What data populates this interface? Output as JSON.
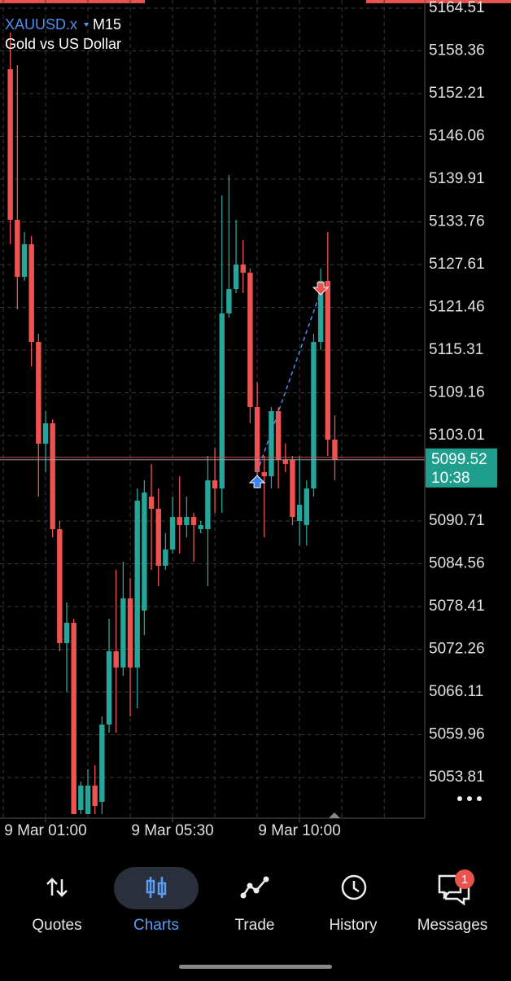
{
  "chart_data": {
    "type": "candlestick",
    "symbol": "XAUUSD.x",
    "timeframe": "M15",
    "subtitle": "Gold vs US Dollar",
    "up_color": "#26a69a",
    "down_color": "#ef5350",
    "grid": true,
    "ylim": [
      5047.95,
      5165.68
    ],
    "yticks": [
      5164.51,
      5158.36,
      5152.21,
      5146.06,
      5139.91,
      5133.76,
      5127.61,
      5121.46,
      5115.31,
      5109.16,
      5103.01,
      5090.71,
      5084.56,
      5078.41,
      5072.26,
      5066.11,
      5059.96,
      5053.81
    ],
    "xticks": [
      {
        "value": 5,
        "label": "9 Mar 01:00"
      },
      {
        "value": 23,
        "label": "9 Mar 05:30"
      },
      {
        "value": 41,
        "label": "9 Mar 10:00"
      }
    ],
    "open": [
      5155.72,
      5134.05,
      5125.85,
      5130.54,
      5116.48,
      5101.84,
      5104.77,
      5089.54,
      5073.14,
      5076.07,
      5049.12,
      5048.54,
      5052.64,
      5050.3,
      5061.42,
      5071.97,
      5069.63,
      5079.58,
      5069.63,
      5077.82,
      5094.22,
      5092.47,
      5084.27,
      5086.61,
      5091.29,
      5090.12,
      5091.29,
      5089.54,
      5089.54,
      5096.57,
      5095.39,
      5120.58,
      5124.09,
      5127.61,
      5126.44,
      5107.11,
      5097.74,
      5097.15,
      5106.52,
      5099.5,
      5099.5,
      5090.71,
      5090.12,
      5095.39,
      5116.48,
      5125.27,
      5102.42
    ],
    "high": [
      5160.99,
      5156.31,
      5132.29,
      5131.71,
      5117.65,
      5106.52,
      5105.35,
      5090.71,
      5079.0,
      5076.65,
      5053.22,
      5054.98,
      5055.57,
      5062.6,
      5076.65,
      5083.68,
      5084.85,
      5082.51,
      5095.39,
      5096.57,
      5098.91,
      5095.39,
      5088.95,
      5094.22,
      5097.15,
      5094.22,
      5091.88,
      5090.71,
      5100.08,
      5101.25,
      5137.57,
      5140.49,
      5134.05,
      5131.12,
      5127.02,
      5110.62,
      5100.08,
      5107.11,
      5107.11,
      5101.84,
      5100.08,
      5100.08,
      5096.57,
      5117.65,
      5127.02,
      5132.29,
      5105.94
    ],
    "low": [
      5130.54,
      5121.17,
      5125.27,
      5112.97,
      5094.22,
      5097.74,
      5088.37,
      5071.97,
      5066.11,
      5048.54,
      5048.54,
      5048.54,
      5048.54,
      5048.54,
      5060.25,
      5060.25,
      5068.45,
      5062.6,
      5063.77,
      5074.31,
      5083.68,
      5081.34,
      5083.68,
      5086.02,
      5086.02,
      5088.37,
      5084.85,
      5088.95,
      5081.34,
      5091.88,
      5091.88,
      5120.0,
      5123.51,
      5123.51,
      5104.77,
      5095.39,
      5088.37,
      5095.39,
      5095.39,
      5097.74,
      5090.12,
      5087.19,
      5087.19,
      5094.22,
      5115.31,
      5100.08,
      5096.57
    ],
    "close": [
      5134.05,
      5125.85,
      5130.54,
      5116.48,
      5101.84,
      5104.77,
      5089.54,
      5073.14,
      5076.07,
      5048.54,
      5052.64,
      5052.64,
      5049.71,
      5061.42,
      5071.97,
      5069.63,
      5079.58,
      5069.63,
      5093.64,
      5094.81,
      5092.47,
      5084.27,
      5086.61,
      5091.29,
      5090.12,
      5091.29,
      5090.12,
      5090.12,
      5096.57,
      5095.39,
      5120.58,
      5124.09,
      5127.61,
      5126.44,
      5107.11,
      5097.74,
      5097.15,
      5106.52,
      5099.5,
      5098.91,
      5091.29,
      5093.05,
      5095.39,
      5116.48,
      5125.27,
      5102.42,
      5099.52
    ],
    "current_price": 5099.52,
    "countdown": "10:38",
    "trade": {
      "entry_index": 35,
      "entry_price": 5097.74,
      "exit_index": 44,
      "exit_price": 5123.74
    }
  },
  "nav": {
    "items": [
      "Quotes",
      "Charts",
      "Trade",
      "History",
      "Messages"
    ],
    "badge": 1
  }
}
